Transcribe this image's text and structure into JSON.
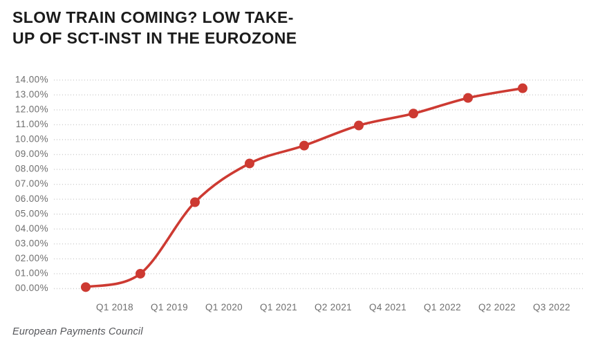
{
  "header": {
    "title_line1": "SLOW TRAIN COMING? LOW TAKE-",
    "title_line2": "UP OF SCT-INST IN THE EUROZONE"
  },
  "footer": {
    "source": "European Payments Council"
  },
  "chart_data": {
    "type": "line",
    "title": "SLOW TRAIN COMING? LOW TAKE-UP OF SCT-INST IN THE EUROZONE",
    "categories": [
      "Q1 2018",
      "Q1 2019",
      "Q1 2020",
      "Q1 2021",
      "Q2 2021",
      "Q4 2021",
      "Q1 2022",
      "Q2 2022",
      "Q3 2022"
    ],
    "values": [
      0.1,
      1.0,
      5.8,
      8.4,
      9.6,
      10.95,
      11.75,
      12.8,
      13.45
    ],
    "unit": "%",
    "xlabel": "",
    "ylabel": "",
    "ylim": [
      0,
      14
    ],
    "ytick_step": 1,
    "ytick_labels": [
      "14.00%",
      "13.00%",
      "12.00%",
      "11.00%",
      "10.00%",
      "09.00%",
      "08.00%",
      "07.00%",
      "06.00%",
      "05.00%",
      "04.00%",
      "03.00%",
      "02.00%",
      "01.00%",
      "00.00%"
    ],
    "grid": "horizontal-dotted",
    "legend": "none",
    "marker": "filled-circle",
    "line_style": "smooth-spline"
  },
  "colors": {
    "background": "#ffffff",
    "title": "#1b1b1b",
    "axis_labels": "#6e6e6e",
    "gridline": "#cbcbcb",
    "line": "#cd3a32",
    "source_text": "#55565a"
  }
}
